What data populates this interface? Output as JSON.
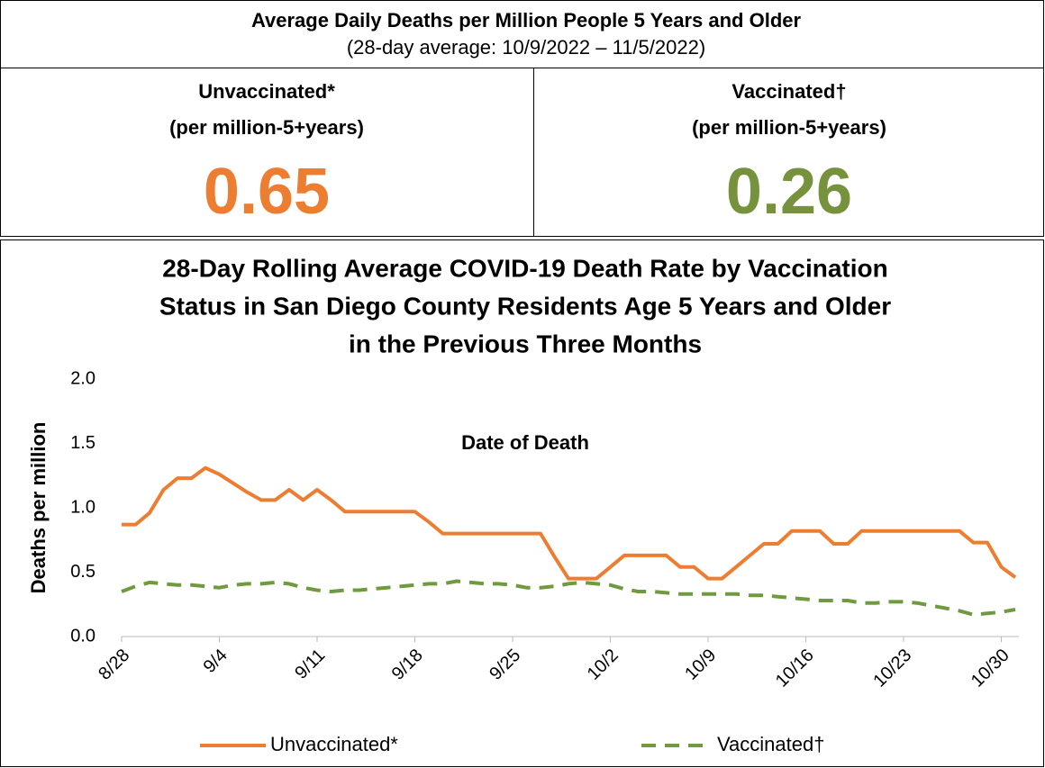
{
  "summary": {
    "title": "Average Daily Deaths per Million People 5 Years and Older",
    "subtitle": "(28-day average: 10/9/2022 – 11/5/2022)",
    "cells": [
      {
        "label": [
          "Unvaccinated*",
          "(per million-5+years)"
        ],
        "value": 0.65,
        "color": "#ED7D31"
      },
      {
        "label": [
          "Vaccinated†",
          "(per million-5+years)"
        ],
        "value": 0.26,
        "color": "#76923C"
      }
    ]
  },
  "chart_data": {
    "type": "line",
    "title": [
      "28-Day Rolling Average COVID-19 Death Rate by Vaccination",
      "Status in San Diego County Residents Age 5 Years and Older",
      "in the Previous Three Months"
    ],
    "x_label": "Date of Death",
    "y_label": "Deaths per million",
    "categories": [
      "8/28",
      null,
      null,
      null,
      null,
      null,
      null,
      "9/4",
      null,
      null,
      null,
      null,
      null,
      null,
      "9/11",
      null,
      null,
      null,
      null,
      null,
      null,
      "9/18",
      null,
      null,
      null,
      null,
      null,
      null,
      "9/25",
      null,
      null,
      null,
      null,
      null,
      null,
      "10/2",
      null,
      null,
      null,
      null,
      null,
      null,
      "10/9",
      null,
      null,
      null,
      null,
      null,
      null,
      "10/16",
      null,
      null,
      null,
      null,
      null,
      null,
      "10/23",
      null,
      null,
      null,
      null,
      null,
      null,
      "10/30",
      null
    ],
    "ylim": [
      0,
      2
    ],
    "yticks": [
      {
        "value": 0,
        "label": "0.0"
      },
      0.5,
      {
        "value": 1,
        "label": "1.0"
      },
      1.5,
      {
        "value": 2,
        "label": "2.0"
      }
    ],
    "legend": "bottom",
    "series": [
      {
        "name": "Unvaccinated*",
        "color": "#ED7D31",
        "dash": false,
        "values": [
          0.87,
          0.87,
          0.96,
          1.14,
          1.23,
          1.23,
          1.31,
          1.26,
          1.19,
          1.12,
          1.06,
          1.06,
          1.14,
          1.06,
          1.14,
          1.06,
          0.97,
          0.97,
          0.97,
          0.97,
          0.97,
          0.97,
          0.89,
          0.8,
          0.8,
          0.8,
          0.8,
          0.8,
          0.8,
          0.8,
          0.8,
          0.62,
          0.45,
          0.45,
          0.45,
          0.54,
          0.63,
          0.63,
          0.63,
          0.63,
          0.54,
          0.54,
          0.45,
          0.45,
          0.54,
          0.63,
          0.72,
          0.72,
          0.82,
          0.82,
          0.82,
          0.72,
          0.72,
          0.82,
          0.82,
          0.82,
          0.82,
          0.82,
          0.82,
          0.82,
          0.82,
          0.73,
          0.73,
          0.54,
          0.46
        ]
      },
      {
        "name": "Vaccinated†",
        "color": "#6F9A3F",
        "dash": true,
        "values": [
          0.35,
          0.39,
          0.42,
          0.41,
          0.4,
          0.4,
          0.39,
          0.38,
          0.4,
          0.41,
          0.41,
          0.42,
          0.41,
          0.38,
          0.36,
          0.35,
          0.36,
          0.36,
          0.37,
          0.38,
          0.39,
          0.4,
          0.41,
          0.41,
          0.43,
          0.42,
          0.41,
          0.41,
          0.4,
          0.38,
          0.38,
          0.39,
          0.41,
          0.42,
          0.41,
          0.4,
          0.37,
          0.35,
          0.35,
          0.34,
          0.33,
          0.33,
          0.33,
          0.33,
          0.33,
          0.32,
          0.32,
          0.31,
          0.3,
          0.29,
          0.28,
          0.28,
          0.28,
          0.26,
          0.26,
          0.27,
          0.27,
          0.26,
          0.24,
          0.22,
          0.2,
          0.17,
          0.18,
          0.19,
          0.21
        ]
      }
    ]
  }
}
